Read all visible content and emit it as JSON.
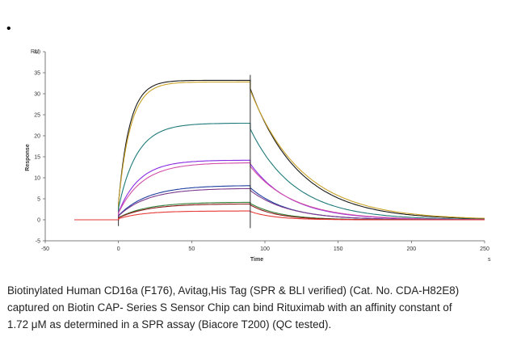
{
  "bullet": "•",
  "chart_data": {
    "type": "line",
    "title": "",
    "xlabel": "Time",
    "ylabel": "Response",
    "yunit_label": "RU",
    "xunit_label": "s",
    "xlim": [
      -50,
      250
    ],
    "ylim": [
      -5,
      40
    ],
    "xticks": [
      -50,
      0,
      50,
      100,
      150,
      200,
      250
    ],
    "yticks": [
      -5,
      0,
      5,
      10,
      15,
      20,
      25,
      30,
      35,
      40
    ],
    "grid": false,
    "legend": "none",
    "baseline_start": -30,
    "injection_start": 0,
    "dissociation_start": 90,
    "end_time": 250,
    "series": [
      {
        "color": "#1a1a1a",
        "plateau": 33.2,
        "ka": 0.13,
        "kd": 0.03
      },
      {
        "color": "#c9a227",
        "plateau": 32.8,
        "ka": 0.12,
        "kd": 0.028
      },
      {
        "color": "#1f7a7a",
        "plateau": 23.0,
        "ka": 0.08,
        "kd": 0.033
      },
      {
        "color": "#8a2be2",
        "plateau": 14.2,
        "ka": 0.07,
        "kd": 0.036
      },
      {
        "color": "#d24fa8",
        "plateau": 13.6,
        "ka": 0.06,
        "kd": 0.034
      },
      {
        "color": "#1f3fa0",
        "plateau": 8.2,
        "ka": 0.05,
        "kd": 0.04
      },
      {
        "color": "#7b3a8c",
        "plateau": 7.5,
        "ka": 0.05,
        "kd": 0.038
      },
      {
        "color": "#2e7d32",
        "plateau": 4.2,
        "ka": 0.05,
        "kd": 0.05
      },
      {
        "color": "#8b1a1a",
        "plateau": 3.8,
        "ka": 0.05,
        "kd": 0.055
      },
      {
        "color": "#e53935",
        "plateau": 2.1,
        "ka": 0.06,
        "kd": 0.06
      }
    ]
  },
  "caption": {
    "line1": "Biotinylated Human CD16a (F176), Avitag,His Tag (SPR & BLI verified) (Cat. No. CDA-H82E8)",
    "line2": "captured on Biotin CAP- Series S Sensor Chip can bind Rituximab with an affinity constant of",
    "line3": "1.72 μM as determined in a SPR assay (Biacore T200) (QC tested)."
  }
}
